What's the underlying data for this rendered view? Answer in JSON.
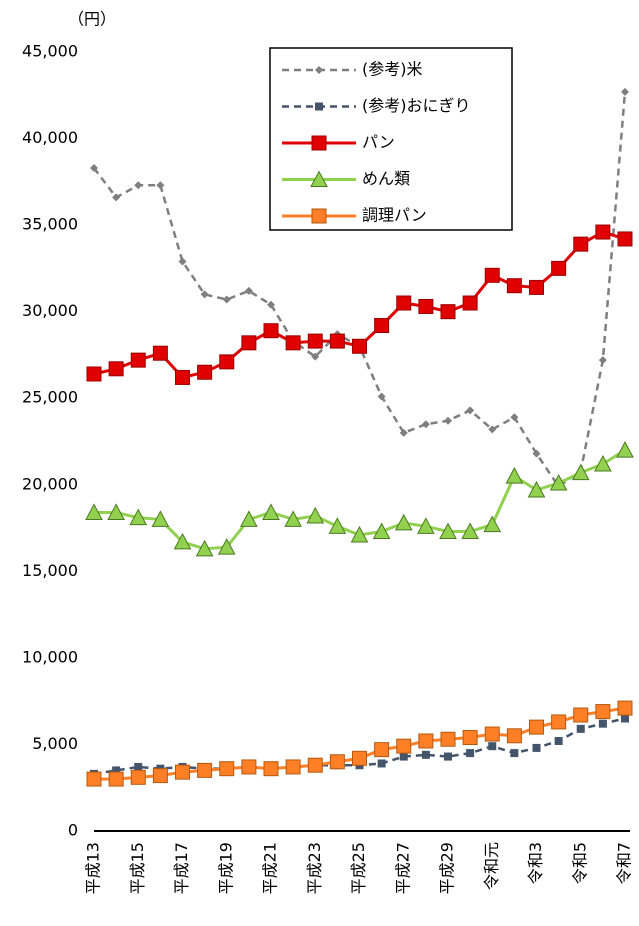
{
  "chart_data": {
    "type": "line",
    "y_label": "（円）",
    "categories": [
      "平成13",
      null,
      "平成15",
      null,
      "平成17",
      null,
      "平成19",
      null,
      "平成21",
      null,
      "平成23",
      null,
      "平成25",
      null,
      "平成27",
      null,
      "平成29",
      null,
      "令和元",
      null,
      "令和3",
      null,
      "令和5",
      null,
      "令和7"
    ],
    "ylim": [
      0,
      45000
    ],
    "yticks": [
      0,
      {
        "value": 5000,
        "label": "5,000"
      },
      {
        "value": 10000,
        "label": "10,000"
      },
      {
        "value": 15000,
        "label": "15,000"
      },
      {
        "value": 20000,
        "label": "20,000"
      },
      {
        "value": 25000,
        "label": "25,000"
      },
      {
        "value": 30000,
        "label": "30,000"
      },
      {
        "value": 35000,
        "label": "35,000"
      },
      {
        "value": 40000,
        "label": "40,000"
      },
      {
        "value": 45000,
        "label": "45,000"
      }
    ],
    "grid": false,
    "legend": "top-right",
    "series": [
      {
        "name": "(参考)米",
        "color": "#7f7f7f",
        "line_style": "dashed",
        "marker": "diamond",
        "values": [
          38300,
          36600,
          37300,
          37300,
          32900,
          31000,
          30700,
          31200,
          30400,
          28300,
          27400,
          28700,
          28000,
          25100,
          23000,
          23500,
          23700,
          24300,
          23200,
          23900,
          21800,
          19900,
          20800,
          27200,
          42700
        ]
      },
      {
        "name": "(参考)おにぎり",
        "color": "#44546a",
        "line_style": "dashed",
        "marker": "square-small",
        "values": [
          3300,
          3500,
          3700,
          3600,
          3700,
          3600,
          3600,
          3700,
          3600,
          3700,
          3800,
          3800,
          3800,
          3900,
          4300,
          4400,
          4300,
          4500,
          4900,
          4500,
          4800,
          5200,
          5900,
          6200,
          6500
        ]
      },
      {
        "name": "パン",
        "color": "#e00000",
        "line_style": "solid",
        "marker": "square",
        "values": [
          26400,
          26700,
          27200,
          27600,
          26200,
          26500,
          27100,
          28200,
          28900,
          28200,
          28300,
          28300,
          28000,
          29200,
          30500,
          30300,
          30000,
          30500,
          32100,
          31500,
          31400,
          32500,
          33900,
          34600,
          34200
        ]
      },
      {
        "name": "めん類",
        "color": "#92d050",
        "line_style": "solid",
        "marker": "triangle",
        "values": [
          18400,
          18400,
          18100,
          18000,
          16700,
          16300,
          16400,
          18000,
          18400,
          18000,
          18200,
          17600,
          17100,
          17300,
          17800,
          17600,
          17300,
          17300,
          17700,
          20500,
          19700,
          20100,
          20700,
          21200,
          22000
        ]
      },
      {
        "name": "調理パン",
        "color": "#ff7f27",
        "line_style": "solid",
        "marker": "square",
        "values": [
          3000,
          3000,
          3100,
          3200,
          3400,
          3500,
          3600,
          3700,
          3600,
          3700,
          3800,
          4000,
          4200,
          4700,
          4900,
          5200,
          5300,
          5400,
          5600,
          5500,
          6000,
          6300,
          6700,
          6900,
          7100
        ]
      }
    ]
  }
}
